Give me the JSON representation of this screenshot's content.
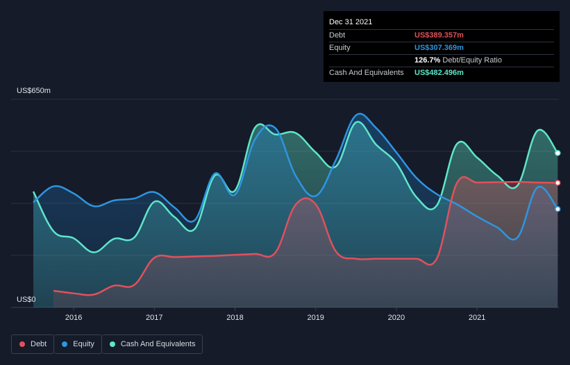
{
  "tooltip": {
    "date": "Dec 31 2021",
    "rows": [
      {
        "label": "Debt",
        "value": "US$389.357m",
        "color": "#e0515c"
      },
      {
        "label": "Equity",
        "value": "US$307.369m",
        "color": "#2f95e0"
      },
      {
        "label": "",
        "value": "126.7%",
        "suffix": "Debt/Equity Ratio"
      },
      {
        "label": "Cash And Equivalents",
        "value": "US$482.496m",
        "color": "#5ee6cb"
      }
    ]
  },
  "legend": [
    {
      "label": "Debt",
      "color": "#e0515c"
    },
    {
      "label": "Equity",
      "color": "#2f95e0"
    },
    {
      "label": "Cash And Equivalents",
      "color": "#5ee6cb"
    }
  ],
  "chart_data": {
    "type": "area",
    "ylim": [
      0,
      650
    ],
    "y_tick_labels": [
      {
        "value": 650,
        "label": "US$650m"
      },
      {
        "value": 0,
        "label": "US$0"
      }
    ],
    "x_ticks": [
      2016,
      2017,
      2018,
      2019,
      2020,
      2021
    ],
    "x_range": [
      2015.5,
      2022.0
    ],
    "grid": true,
    "series": [
      {
        "name": "Debt",
        "color": "#e0515c",
        "x": [
          2015.75,
          2016.0,
          2016.25,
          2016.5,
          2016.75,
          2017.0,
          2017.25,
          2017.5,
          2017.75,
          2018.0,
          2018.25,
          2018.5,
          2018.75,
          2019.0,
          2019.25,
          2019.5,
          2019.75,
          2020.0,
          2020.25,
          2020.5,
          2020.75,
          2021.0,
          2021.25,
          2021.5,
          2021.75,
          2022.0
        ],
        "values": [
          52,
          44,
          40,
          68,
          70,
          155,
          157,
          159,
          161,
          164,
          167,
          171,
          320,
          322,
          175,
          152,
          152,
          152,
          152,
          152,
          388,
          390,
          391,
          392,
          390,
          389
        ]
      },
      {
        "name": "Equity",
        "color": "#2f95e0",
        "x": [
          2015.5,
          2015.75,
          2016.0,
          2016.25,
          2016.5,
          2016.75,
          2017.0,
          2017.25,
          2017.5,
          2017.75,
          2018.0,
          2018.25,
          2018.5,
          2018.75,
          2019.0,
          2019.25,
          2019.5,
          2019.75,
          2020.0,
          2020.25,
          2020.5,
          2020.75,
          2021.0,
          2021.25,
          2021.5,
          2021.75,
          2022.0
        ],
        "values": [
          328,
          378,
          356,
          316,
          334,
          340,
          360,
          312,
          272,
          418,
          352,
          526,
          560,
          412,
          348,
          460,
          600,
          560,
          484,
          404,
          354,
          322,
          284,
          250,
          218,
          375,
          307
        ]
      },
      {
        "name": "Cash And Equivalents",
        "color": "#5ee6cb",
        "x": [
          2015.5,
          2015.75,
          2016.0,
          2016.25,
          2016.5,
          2016.75,
          2017.0,
          2017.25,
          2017.5,
          2017.75,
          2018.0,
          2018.25,
          2018.5,
          2018.75,
          2019.0,
          2019.25,
          2019.5,
          2019.75,
          2020.0,
          2020.25,
          2020.5,
          2020.75,
          2021.0,
          2021.25,
          2021.5,
          2021.75,
          2022.0
        ],
        "values": [
          362,
          238,
          216,
          172,
          214,
          218,
          330,
          282,
          245,
          412,
          365,
          562,
          540,
          545,
          484,
          440,
          578,
          508,
          450,
          344,
          318,
          510,
          468,
          412,
          380,
          552,
          482
        ]
      }
    ]
  }
}
